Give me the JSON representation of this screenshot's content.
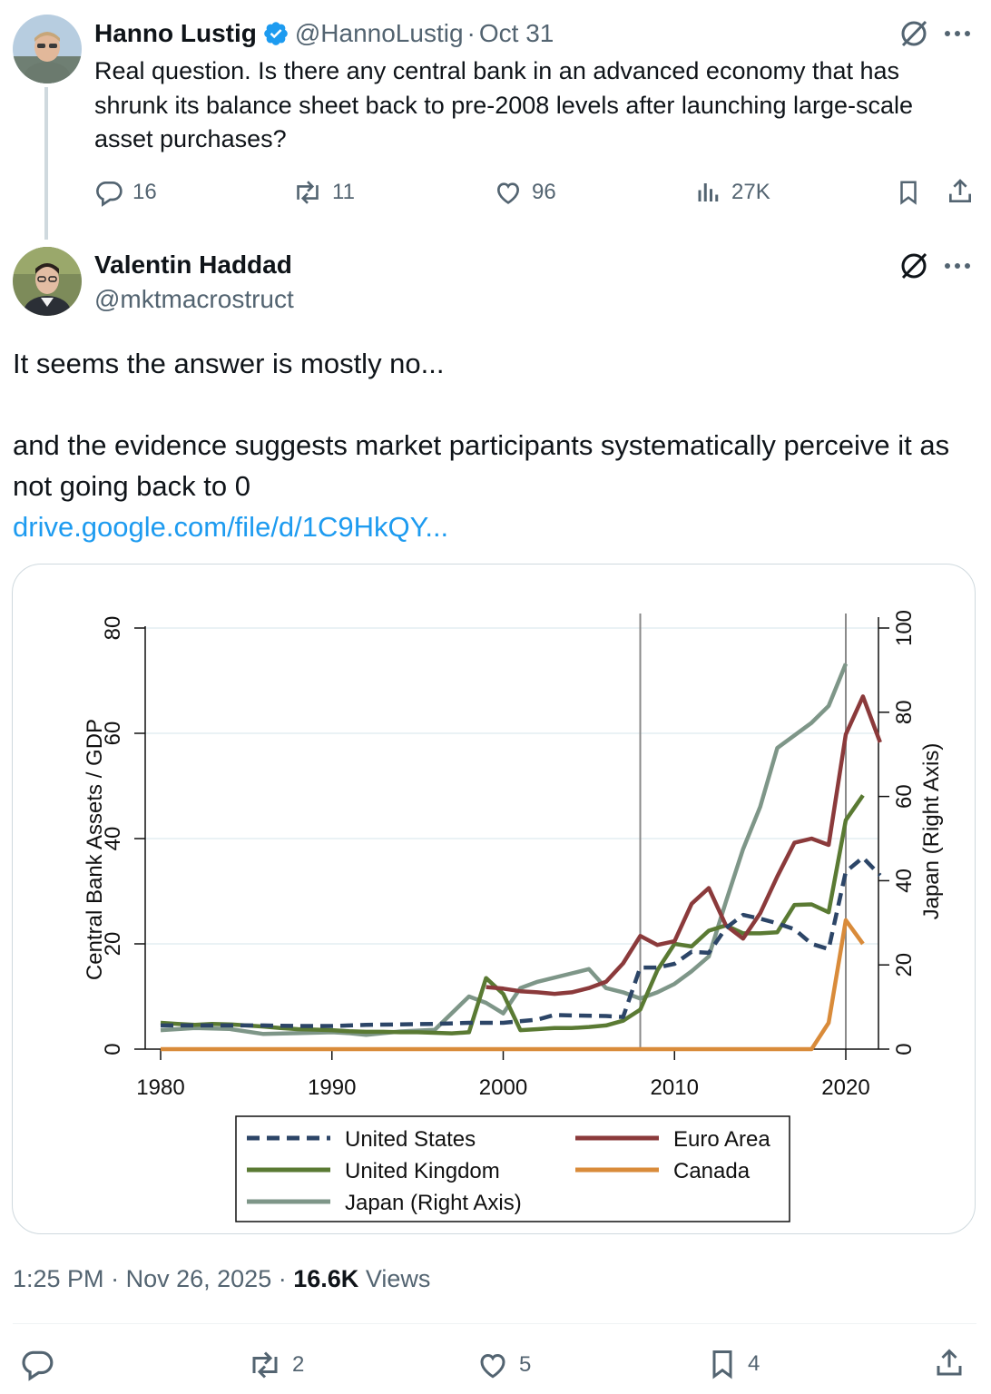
{
  "quoted_post": {
    "author_name": "Hanno Lustig",
    "handle": "@HannoLustig",
    "separator": "·",
    "date": "Oct 31",
    "text": "Real question. Is there any central bank in an advanced economy that has shrunk its balance sheet back to pre-2008 levels after launching large-scale asset purchases?",
    "stats": {
      "replies": "16",
      "reposts": "11",
      "likes": "96",
      "views": "27K"
    }
  },
  "main_post": {
    "author_name": "Valentin Haddad",
    "handle": "@mktmacrostruct",
    "text_line1": "It seems the answer is mostly no...",
    "text_line2": "and the evidence suggests market participants systematically perceive it as not going back to 0",
    "link_text": "drive.google.com/file/d/1C9HkQY...",
    "time": "1:25 PM",
    "separator": "·",
    "date": "Nov 26, 2025",
    "views_count": "16.6K",
    "views_label": "Views",
    "stats": {
      "replies": "",
      "reposts": "2",
      "likes": "5",
      "bookmarks": "4"
    }
  },
  "icons": [
    "verified-badge-icon",
    "grok-icon",
    "more-icon",
    "reply-icon",
    "repost-icon",
    "like-icon",
    "views-icon",
    "bookmark-icon",
    "share-icon"
  ],
  "colors": {
    "accent": "#1d9bf0",
    "text": "#0f1419",
    "muted": "#536471",
    "border": "#cfd9de"
  },
  "chart_data": {
    "type": "line",
    "xlim": [
      1980,
      2022
    ],
    "ylim": [
      0,
      80
    ],
    "y2lim": [
      0,
      100
    ],
    "x_ticks": [
      "1980",
      "1990",
      "2000",
      "2010",
      "2020"
    ],
    "y_ticks": [
      "0",
      "20",
      "40",
      "60",
      "80"
    ],
    "y2_ticks": [
      "0",
      "20",
      "40",
      "60",
      "80",
      "100"
    ],
    "ylabel": "Central Bank Assets / GDP",
    "y2label": "Japan (Right Axis)",
    "vlines": [
      2008,
      2020
    ],
    "series": [
      {
        "name": "United States",
        "axis": "left",
        "style": "dashed",
        "color": "#2c4567",
        "x": [
          1980,
          1982,
          1984,
          1986,
          1988,
          1990,
          1992,
          1994,
          1996,
          1998,
          2000,
          2002,
          2003,
          2004,
          2006,
          2007,
          2008,
          2009,
          2010,
          2011,
          2012,
          2013,
          2014,
          2015,
          2016,
          2017,
          2018,
          2019,
          2020,
          2021,
          2022
        ],
        "y": [
          4.5,
          4.5,
          4.5,
          4.5,
          4.4,
          4.4,
          4.6,
          4.7,
          4.8,
          5.0,
          5.0,
          5.6,
          6.5,
          6.4,
          6.3,
          6.1,
          15.5,
          15.5,
          16.2,
          18.5,
          18.3,
          23.0,
          25.5,
          24.8,
          23.9,
          22.8,
          20.0,
          19.0,
          33.7,
          36.4,
          33.0
        ]
      },
      {
        "name": "Euro Area",
        "axis": "left",
        "style": "solid",
        "color": "#8b3a3b",
        "x": [
          1999,
          2000,
          2001,
          2002,
          2003,
          2004,
          2005,
          2006,
          2007,
          2008,
          2009,
          2010,
          2011,
          2012,
          2013,
          2014,
          2015,
          2016,
          2017,
          2018,
          2019,
          2020,
          2021,
          2022
        ],
        "y": [
          11.8,
          11.5,
          11.0,
          10.8,
          10.5,
          10.8,
          11.6,
          12.8,
          16.3,
          21.5,
          19.8,
          20.5,
          27.6,
          30.6,
          23.5,
          21.0,
          25.8,
          32.8,
          39.2,
          40.0,
          38.8,
          59.8,
          67.0,
          58.3
        ]
      },
      {
        "name": "United Kingdom",
        "axis": "left",
        "style": "solid",
        "color": "#5a7a33",
        "x": [
          1980,
          1981,
          1982,
          1983,
          1984,
          1985,
          1986,
          1987,
          1988,
          1989,
          1990,
          1991,
          1992,
          1993,
          1994,
          1995,
          1996,
          1997,
          1998,
          1999,
          2000,
          2001,
          2002,
          2003,
          2004,
          2005,
          2006,
          2007,
          2008,
          2009,
          2010,
          2011,
          2012,
          2013,
          2014,
          2015,
          2016,
          2017,
          2018,
          2019,
          2020,
          2021
        ],
        "y": [
          5.0,
          4.8,
          4.6,
          4.8,
          4.7,
          4.5,
          4.3,
          4.0,
          3.8,
          3.7,
          3.6,
          3.4,
          3.3,
          3.3,
          3.2,
          3.2,
          3.1,
          3.0,
          3.2,
          13.5,
          10.5,
          3.6,
          3.8,
          4.0,
          4.0,
          4.2,
          4.5,
          5.4,
          7.5,
          15.0,
          20.0,
          19.5,
          22.5,
          23.5,
          22.0,
          22.0,
          22.2,
          27.4,
          27.5,
          26.0,
          43.5,
          48.2
        ]
      },
      {
        "name": "Canada",
        "axis": "left",
        "style": "solid",
        "color": "#d98b3a",
        "x": [
          1980,
          2018,
          2019,
          2020,
          2021
        ],
        "y": [
          0,
          0,
          5.0,
          24.5,
          20.0
        ]
      },
      {
        "name": "Japan (Right Axis)",
        "axis": "right",
        "style": "solid",
        "color": "#7e9688",
        "x": [
          1980,
          1982,
          1984,
          1986,
          1988,
          1990,
          1991,
          1992,
          1994,
          1996,
          1998,
          1999,
          2000,
          2001,
          2002,
          2004,
          2005,
          2006,
          2007,
          2008,
          2009,
          2010,
          2011,
          2012,
          2013,
          2014,
          2015,
          2016,
          2017,
          2018,
          2019,
          2020
        ],
        "y": [
          4.5,
          5.0,
          4.8,
          3.6,
          3.8,
          4.0,
          3.8,
          3.4,
          4.2,
          4.6,
          12.5,
          11.0,
          8.5,
          14.5,
          16.0,
          18.0,
          19.0,
          14.5,
          13.5,
          12.0,
          13.5,
          15.5,
          18.5,
          22.0,
          35.0,
          47.5,
          57.5,
          71.5,
          74.5,
          77.5,
          81.5,
          91.5
        ]
      }
    ]
  }
}
